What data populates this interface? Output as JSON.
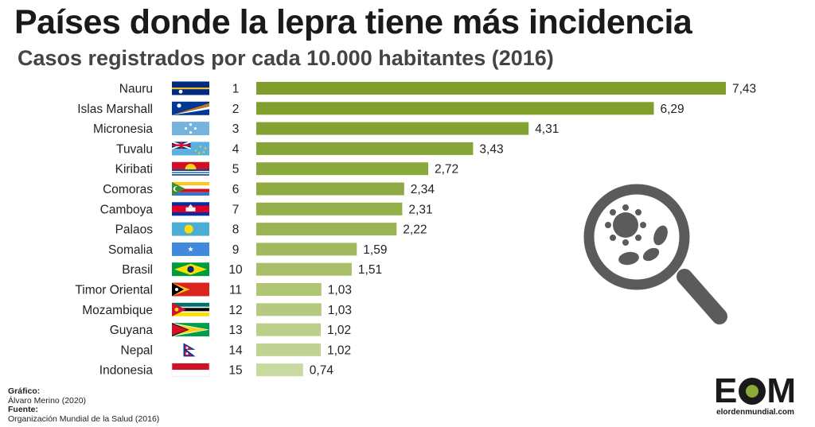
{
  "title": "Países donde la lepra tiene más incidencia",
  "subtitle": "Casos registrados por cada 10.000 habitantes (2016)",
  "chart_data": {
    "type": "bar",
    "orientation": "horizontal",
    "title": "Países donde la lepra tiene más incidencia",
    "subtitle": "Casos registrados por cada 10.000 habitantes (2016)",
    "categories": [
      "Nauru",
      "Islas Marshall",
      "Micronesia",
      "Tuvalu",
      "Kiribati",
      "Comoras",
      "Camboya",
      "Palaos",
      "Somalia",
      "Brasil",
      "Timor Oriental",
      "Mozambique",
      "Guyana",
      "Nepal",
      "Indonesia"
    ],
    "ranks": [
      "1",
      "2",
      "3",
      "4",
      "5",
      "6",
      "7",
      "8",
      "9",
      "10",
      "11",
      "12",
      "13",
      "14",
      "15"
    ],
    "values": [
      7.43,
      6.29,
      4.31,
      3.43,
      2.72,
      2.34,
      2.31,
      2.22,
      1.59,
      1.51,
      1.03,
      1.03,
      1.02,
      1.02,
      0.74
    ],
    "value_labels": [
      "7,43",
      "6,29",
      "4,31",
      "3,43",
      "2,72",
      "2,34",
      "2,31",
      "2,22",
      "1,59",
      "1,51",
      "1,03",
      "1,03",
      "1,02",
      "1,02",
      "0,74"
    ],
    "flags": [
      "flag-nauru",
      "flag-marshall-islands",
      "flag-micronesia",
      "flag-tuvalu",
      "flag-kiribati",
      "flag-comoros",
      "flag-cambodia",
      "flag-palau",
      "flag-somalia",
      "flag-brazil",
      "flag-timor-leste",
      "flag-mozambique",
      "flag-guyana",
      "flag-nepal",
      "flag-indonesia"
    ],
    "xlim": [
      0,
      7.43
    ],
    "grid": false,
    "legend": "none",
    "bar_colors": [
      "#7f9e2b",
      "#809f2c",
      "#83a232",
      "#86a537",
      "#8aa93d",
      "#8faa42",
      "#94b04b",
      "#99b452",
      "#a1ba5d",
      "#a8bf68",
      "#b0c675",
      "#b6ca7f",
      "#bccf89",
      "#c1d392",
      "#c9d9a0"
    ]
  },
  "credits": {
    "graphic_label": "Gráfico:",
    "graphic_author": "Álvaro Merino (2020)",
    "source_label": "Fuente:",
    "source_name": "Organización Mundial de la Salud (2016)"
  },
  "brand": {
    "mark_e": "E",
    "mark_m": "M",
    "url": "elordenmundial.com"
  },
  "illustration_icon": "magnifier-bacteria-icon"
}
